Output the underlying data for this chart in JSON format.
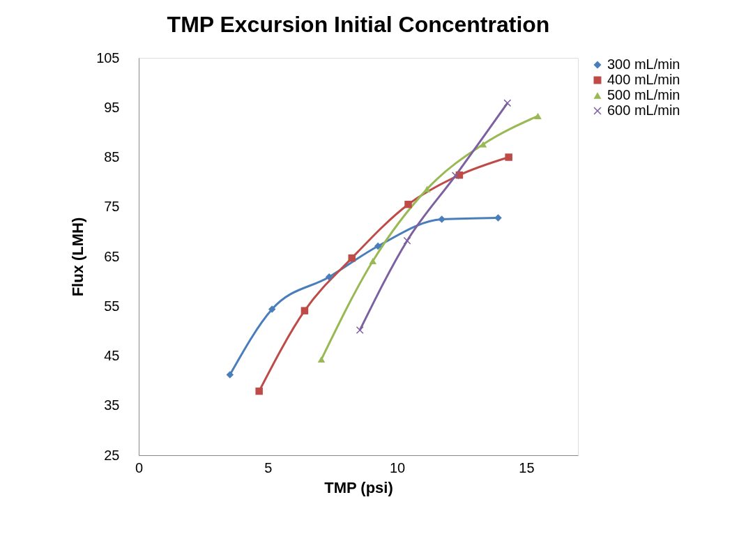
{
  "chart_data": {
    "type": "line",
    "title": "TMP Excursion Initial Concentration",
    "xlabel": "TMP (psi)",
    "ylabel": "Flux (LMH)",
    "xlim": [
      0,
      17
    ],
    "xticks": [
      0,
      5,
      10,
      15
    ],
    "ylim": [
      25,
      105
    ],
    "yticks": [
      25,
      35,
      45,
      55,
      65,
      75,
      85,
      95,
      105
    ],
    "grid": false,
    "legend": "right",
    "series": [
      {
        "name": "300 mL/min",
        "color": "#4a7ebb",
        "marker": "diamond",
        "x": [
          3.53,
          5.16,
          7.37,
          9.26,
          11.73,
          13.91
        ],
        "values": [
          41.2,
          54.4,
          60.9,
          67.1,
          72.5,
          72.8
        ]
      },
      {
        "name": "400 mL/min",
        "color": "#be4b48",
        "marker": "square",
        "x": [
          4.66,
          6.42,
          8.25,
          10.43,
          12.41,
          14.32
        ],
        "values": [
          37.9,
          54.1,
          64.7,
          75.5,
          81.4,
          85.0
        ]
      },
      {
        "name": "500 mL/min",
        "color": "#98b954",
        "marker": "triangle",
        "x": [
          7.07,
          9.06,
          11.16,
          13.33,
          15.45
        ],
        "values": [
          44.3,
          64.1,
          78.6,
          87.6,
          93.3
        ]
      },
      {
        "name": "600 mL/min",
        "color": "#7d60a0",
        "marker": "cross",
        "x": [
          8.56,
          10.39,
          12.26,
          14.27
        ],
        "values": [
          50.2,
          68.2,
          81.3,
          95.9
        ]
      }
    ]
  }
}
